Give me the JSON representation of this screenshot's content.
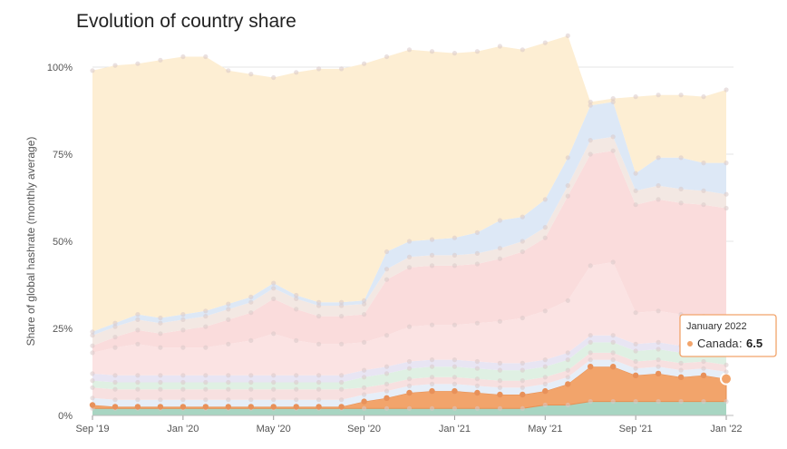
{
  "chart_data": {
    "type": "area",
    "title": "Evolution of country share",
    "ylabel": "Share of global hashrate (monthly average)",
    "ylim": [
      0,
      100
    ],
    "yticks": [
      "0%",
      "25%",
      "50%",
      "75%",
      "100%"
    ],
    "xticks": [
      "Sep '19",
      "Jan '20",
      "May '20",
      "Sep '20",
      "Jan '21",
      "May '21",
      "Sep '21",
      "Jan '22"
    ],
    "x": [
      "Sep '19",
      "Oct '19",
      "Nov '19",
      "Dec '19",
      "Jan '20",
      "Feb '20",
      "Mar '20",
      "Apr '20",
      "May '20",
      "Jun '20",
      "Jul '20",
      "Aug '20",
      "Sep '20",
      "Oct '20",
      "Nov '20",
      "Dec '20",
      "Jan '21",
      "Feb '21",
      "Mar '21",
      "Apr '21",
      "May '21",
      "Jun '21",
      "Jul '21",
      "Aug '21",
      "Sep '21",
      "Oct '21",
      "Nov '21",
      "Dec '21",
      "Jan '22"
    ],
    "series": [
      {
        "name": "",
        "color": "#a8d5c2",
        "values": [
          2,
          2,
          2,
          2,
          2,
          2,
          2,
          2,
          2,
          2,
          2,
          2,
          2,
          2,
          2,
          2,
          2,
          2,
          2,
          2,
          3,
          3,
          4,
          4,
          4,
          4,
          4,
          4,
          4
        ]
      },
      {
        "name": "Canada",
        "color": "#f2a46b",
        "values": [
          1,
          0.5,
          0.5,
          0.5,
          0.5,
          0.5,
          0.5,
          0.5,
          0.5,
          0.5,
          0.5,
          0.5,
          2,
          3,
          4.5,
          5,
          5,
          4.5,
          4,
          4,
          4,
          6,
          10,
          10,
          7.5,
          8,
          7,
          7.5,
          6.5
        ]
      },
      {
        "name": "",
        "color": "#e6eef8",
        "values": [
          2,
          2,
          2,
          2,
          2,
          2,
          2,
          2,
          2,
          2,
          2,
          2,
          2,
          2,
          2,
          2,
          2,
          2,
          2,
          2,
          2,
          2,
          2,
          2,
          2,
          2,
          2,
          2,
          2
        ]
      },
      {
        "name": "",
        "color": "#f7e0e0",
        "values": [
          3,
          3,
          3,
          3,
          3,
          3,
          3,
          3,
          3,
          3,
          3,
          3,
          2,
          2,
          2,
          2,
          2,
          2,
          2,
          2,
          2,
          2,
          2,
          2,
          2,
          2,
          2,
          2,
          2
        ]
      },
      {
        "name": "",
        "color": "#dff0e3",
        "values": [
          2,
          2,
          2,
          2,
          2,
          2,
          2,
          2,
          2,
          2,
          2,
          2,
          3,
          3,
          3,
          3,
          3,
          3,
          3,
          3,
          3,
          3,
          3,
          3,
          3,
          3,
          3,
          3,
          3
        ]
      },
      {
        "name": "",
        "color": "#e8e5f3",
        "values": [
          2,
          2,
          2,
          2,
          2,
          2,
          2,
          2,
          2,
          2,
          2,
          2,
          2,
          2,
          2,
          2,
          2,
          2,
          2,
          2,
          2,
          2,
          2,
          2,
          2,
          2,
          2,
          2,
          2
        ]
      },
      {
        "name": "",
        "color": "#fbe3e3",
        "values": [
          6,
          8,
          9,
          8,
          8,
          8,
          9,
          10,
          12,
          10,
          9,
          9,
          8,
          9,
          10,
          10,
          10,
          11,
          12,
          13,
          14,
          15,
          20,
          21,
          9,
          9,
          9,
          8,
          8
        ]
      },
      {
        "name": "",
        "color": "#fadcdc",
        "values": [
          2,
          3,
          4,
          4,
          5,
          6,
          7,
          8,
          10,
          9,
          8,
          8,
          8,
          16,
          17,
          17,
          17,
          17,
          18,
          19,
          21,
          30,
          32,
          32,
          31,
          32,
          32,
          32,
          32
        ]
      },
      {
        "name": "",
        "color": "#f3e8e3",
        "values": [
          3,
          3,
          3,
          3,
          3,
          3,
          3,
          3,
          3,
          3,
          3,
          3,
          3,
          3,
          3,
          3,
          3,
          3,
          3,
          3,
          3,
          3,
          4,
          4,
          4,
          4,
          4,
          4,
          4
        ]
      },
      {
        "name": "",
        "color": "#dde8f6",
        "values": [
          1,
          1,
          1.5,
          1.5,
          1.5,
          1.5,
          1.5,
          1.5,
          1.5,
          1,
          1,
          1,
          1,
          5,
          4.5,
          4.5,
          5,
          6,
          8,
          7,
          8,
          8,
          10,
          10,
          5,
          8,
          9,
          8,
          9
        ]
      },
      {
        "name": "",
        "color": "#fdeed3",
        "values": [
          75,
          74,
          72,
          74,
          74,
          73,
          67,
          64,
          59,
          64,
          67,
          67,
          68,
          56,
          55,
          54,
          53,
          52,
          50,
          48,
          45,
          35,
          1,
          1,
          22,
          18,
          18,
          19,
          21
        ]
      }
    ],
    "tooltip": {
      "header": "January 2022",
      "series": "Canada",
      "value": "6.5"
    }
  }
}
